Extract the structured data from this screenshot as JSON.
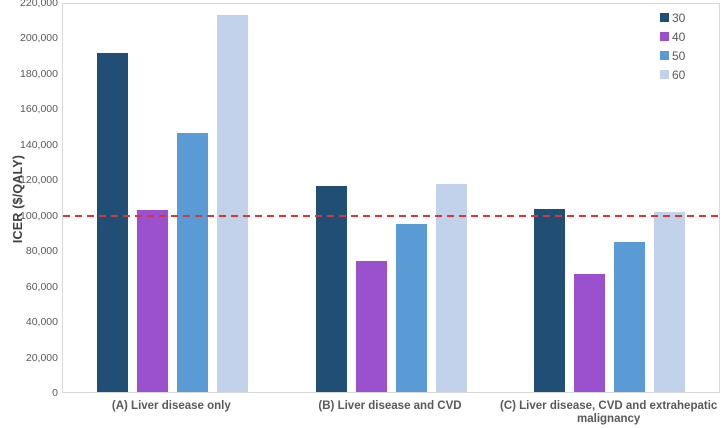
{
  "figure": {
    "background": "#ffffff",
    "plot_border_color": "#d9d9d9",
    "axis_text_color": "#595959"
  },
  "chart_data": {
    "type": "bar",
    "title": "",
    "xlabel": "",
    "ylabel": "ICER ($/QALY)",
    "ylim": [
      0,
      220000
    ],
    "ytick_step": 20000,
    "grid": false,
    "legend_position": "top-right",
    "categories": [
      "(A) Liver disease only",
      "(B) Liver disease and CVD",
      "(C) Liver disease, CVD and extrahepatic malignancy"
    ],
    "series": [
      {
        "name": "30",
        "color": "#204E75",
        "values": [
          192000,
          117000,
          104000
        ]
      },
      {
        "name": "40",
        "color": "#9B51CE",
        "values": [
          103000,
          74000,
          67000
        ]
      },
      {
        "name": "50",
        "color": "#5B9BD5",
        "values": [
          147000,
          95000,
          85000
        ]
      },
      {
        "name": "60",
        "color": "#C1D2EA",
        "values": [
          214000,
          118000,
          102000
        ]
      }
    ],
    "threshold_line": {
      "value": 100000,
      "color": "#E23333",
      "style": "dashed"
    }
  }
}
